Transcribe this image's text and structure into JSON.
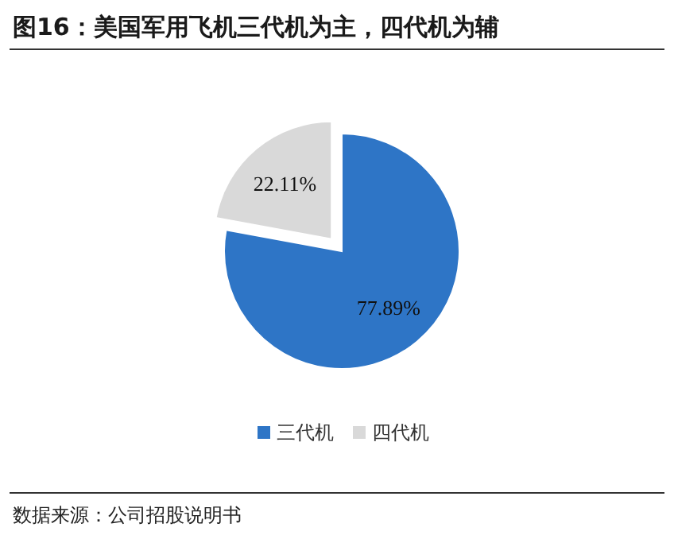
{
  "chart_data": {
    "type": "pie",
    "title": "图16：美国军用飞机三代机为主，四代机为辅",
    "categories": [
      "三代机",
      "四代机"
    ],
    "values": [
      77.89,
      22.11
    ],
    "colors": [
      "#2e75c6",
      "#d9d9d9"
    ],
    "value_labels": [
      "77.89%",
      "22.11%"
    ],
    "legend": "bottom",
    "annotations": [
      "数据来源：公司招股说明书"
    ]
  }
}
